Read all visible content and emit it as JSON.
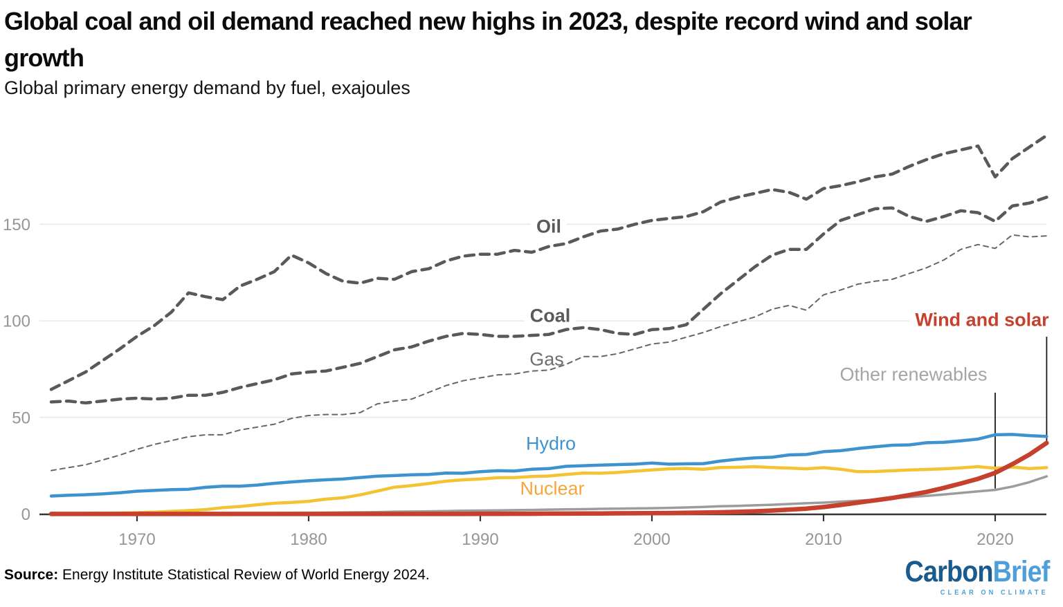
{
  "header": {
    "title": "Global coal and oil demand reached new highs in 2023, despite record wind and solar growth",
    "subtitle": "Global primary energy demand by fuel, exajoules"
  },
  "footer": {
    "source_label": "Source:",
    "source_text": " Energy Institute Statistical Review of World Energy 2024.",
    "logo": {
      "part1": "Carbon",
      "part2": "Brief",
      "tagline": "CLEAR ON CLIMATE",
      "color_dark": "#1B5A8C",
      "color_light": "#4C9FD8"
    }
  },
  "chart_data": {
    "type": "line",
    "title": "Global coal and oil demand reached new highs in 2023, despite record wind and solar growth",
    "subtitle": "Global primary energy demand by fuel, exajoules",
    "xlabel": "",
    "ylabel": "exajoules",
    "x_start": 1965,
    "x_end": 2023,
    "x_ticks": [
      1970,
      1980,
      1990,
      2000,
      2010,
      2020
    ],
    "y_ticks": [
      0,
      50,
      100,
      150
    ],
    "ylim": [
      0,
      200
    ],
    "grid": "horizontal",
    "legend_position": "inline-labels",
    "axis_color": "#333333",
    "grid_color": "#e4e4e4",
    "tick_label_color": "#969696",
    "callout_color": "#1a1a1a",
    "series": [
      {
        "name": "Oil",
        "color": "#595959",
        "label_color": "#595959",
        "line_style": "dashed-thick",
        "width": 4.5,
        "dash": "13 9",
        "z": 2,
        "values": [
          64.5,
          69,
          73.5,
          79.5,
          85.5,
          92,
          97.5,
          104.5,
          114.5,
          112.5,
          111,
          118,
          121.5,
          125.5,
          134,
          130,
          124.5,
          120.5,
          119.5,
          122,
          121.5,
          125.5,
          127,
          131,
          133.5,
          134.5,
          134.5,
          136.5,
          135.5,
          138.5,
          140,
          143.5,
          146.5,
          147.5,
          150,
          152,
          153,
          154,
          156.5,
          161.5,
          164,
          166,
          168,
          166.5,
          163,
          168.5,
          170,
          172,
          174.5,
          176,
          180,
          183.5,
          186.5,
          188.5,
          190.5,
          174.5,
          184,
          190,
          196
        ]
      },
      {
        "name": "Coal",
        "color": "#595959",
        "label_color": "#595959",
        "line_style": "dashed-thick",
        "width": 4.5,
        "dash": "13 9",
        "z": 3,
        "values": [
          58,
          58.5,
          57.5,
          58.5,
          59.5,
          60,
          59.5,
          60,
          61.5,
          61.5,
          63,
          65.5,
          67.5,
          69.5,
          72.5,
          73.5,
          74,
          76,
          78,
          81.5,
          85,
          86.5,
          89.5,
          92,
          93.5,
          93,
          92,
          92,
          92.5,
          93,
          95.5,
          96.5,
          95.5,
          93.5,
          93,
          95.5,
          96,
          98,
          106,
          114,
          121,
          128,
          134,
          137,
          137,
          145,
          152,
          155,
          158,
          158.5,
          154,
          151.5,
          154,
          157,
          156,
          151.5,
          159.5,
          161,
          164
        ]
      },
      {
        "name": "Gas",
        "color": "#666666",
        "label_color": "#6e6e6e",
        "line_style": "dashed-thin",
        "width": 2,
        "dash": "7 6",
        "z": 1,
        "values": [
          22.5,
          24,
          25.5,
          28,
          30.5,
          33.5,
          36,
          38,
          40,
          41,
          41,
          43.5,
          45,
          46.5,
          49.5,
          51,
          51.5,
          51.5,
          52.5,
          57,
          58.5,
          59.5,
          63,
          66.5,
          69,
          70.5,
          72,
          72.5,
          74,
          74.5,
          77.5,
          81.5,
          81.5,
          83,
          85.5,
          88,
          89,
          91.5,
          94,
          97,
          99.5,
          102,
          106,
          108,
          105.5,
          113.5,
          116,
          119,
          120.5,
          121.5,
          124.5,
          127.5,
          131.5,
          137,
          139.5,
          137.5,
          144.5,
          143.5,
          144
        ]
      },
      {
        "name": "Hydro",
        "color": "#3E92CF",
        "label_color": "#3E92CF",
        "line_style": "solid",
        "width": 4.5,
        "dash": "",
        "z": 6,
        "values": [
          9.3,
          9.7,
          10,
          10.4,
          11,
          11.8,
          12.2,
          12.6,
          12.8,
          13.8,
          14.4,
          14.4,
          15,
          15.9,
          16.6,
          17.2,
          17.7,
          18.1,
          18.9,
          19.6,
          19.9,
          20.3,
          20.5,
          21.2,
          21.1,
          21.9,
          22.4,
          22.3,
          23.2,
          23.5,
          24.7,
          25,
          25.3,
          25.6,
          25.8,
          26.4,
          25.8,
          26,
          26.1,
          27.4,
          28.4,
          29.1,
          29.4,
          30.6,
          30.8,
          32.3,
          32.8,
          33.9,
          34.8,
          35.6,
          35.8,
          36.9,
          37.1,
          37.9,
          38.8,
          41,
          41.2,
          40.6,
          40.2
        ]
      },
      {
        "name": "Nuclear",
        "color": "#F2C433",
        "label_color": "#F6A63A",
        "line_style": "solid",
        "width": 4.5,
        "dash": "",
        "z": 5,
        "values": [
          0.2,
          0.3,
          0.3,
          0.4,
          0.5,
          0.7,
          1,
          1.4,
          1.8,
          2.3,
          3.3,
          3.9,
          4.8,
          5.6,
          6,
          6.6,
          7.7,
          8.4,
          9.9,
          11.9,
          13.9,
          14.7,
          15.8,
          17,
          17.7,
          18.1,
          18.8,
          18.9,
          19.4,
          19.7,
          20.5,
          21.2,
          21.1,
          21.5,
          22.2,
          22.8,
          23.4,
          23.6,
          23.2,
          24.1,
          24.2,
          24.5,
          24.1,
          23.8,
          23.4,
          24,
          23.2,
          21.9,
          22,
          22.4,
          22.8,
          23.1,
          23.4,
          23.9,
          24.5,
          23.7,
          24.3,
          23.5,
          24
        ]
      },
      {
        "name": "Wind and solar",
        "color": "#C6402E",
        "label_color": "#C6402E",
        "line_style": "solid",
        "width": 6.5,
        "dash": "",
        "z": 7,
        "values": [
          0.05,
          0.05,
          0.05,
          0.05,
          0.05,
          0.05,
          0.05,
          0.05,
          0.05,
          0.05,
          0.05,
          0.05,
          0.05,
          0.05,
          0.05,
          0.05,
          0.05,
          0.05,
          0.05,
          0.05,
          0.05,
          0.05,
          0.05,
          0.05,
          0.05,
          0.1,
          0.1,
          0.15,
          0.15,
          0.2,
          0.2,
          0.25,
          0.3,
          0.35,
          0.4,
          0.45,
          0.5,
          0.6,
          0.75,
          0.9,
          1.1,
          1.4,
          1.8,
          2.3,
          2.8,
          3.6,
          4.7,
          5.9,
          7.1,
          8.3,
          9.8,
          11.4,
          13.5,
          15.8,
          18.2,
          21.3,
          25.8,
          30.8,
          36.8
        ]
      },
      {
        "name": "Other renewables",
        "color": "#9C9C9C",
        "label_color": "#A5A5A5",
        "line_style": "solid",
        "width": 3.5,
        "dash": "",
        "z": 4,
        "values": [
          0.1,
          0.1,
          0.1,
          0.15,
          0.15,
          0.2,
          0.2,
          0.25,
          0.25,
          0.3,
          0.3,
          0.35,
          0.4,
          0.45,
          0.5,
          0.6,
          0.7,
          0.8,
          0.9,
          1,
          1.2,
          1.3,
          1.4,
          1.5,
          1.7,
          1.8,
          1.9,
          2,
          2.1,
          2.3,
          2.4,
          2.5,
          2.7,
          2.8,
          2.9,
          3,
          3.2,
          3.4,
          3.7,
          4,
          4.2,
          4.5,
          4.8,
          5.2,
          5.6,
          5.9,
          6.4,
          6.9,
          7.4,
          8.1,
          8.8,
          9.4,
          10.1,
          10.9,
          11.7,
          12.5,
          14.2,
          16.5,
          19.5
        ]
      }
    ],
    "callouts": [
      {
        "label": "Wind and solar",
        "year": 2023,
        "value": 36.8,
        "top": 91.8
      },
      {
        "label": "Other renewables",
        "year": 2020,
        "value": 12.5,
        "top": 62.8
      }
    ]
  }
}
